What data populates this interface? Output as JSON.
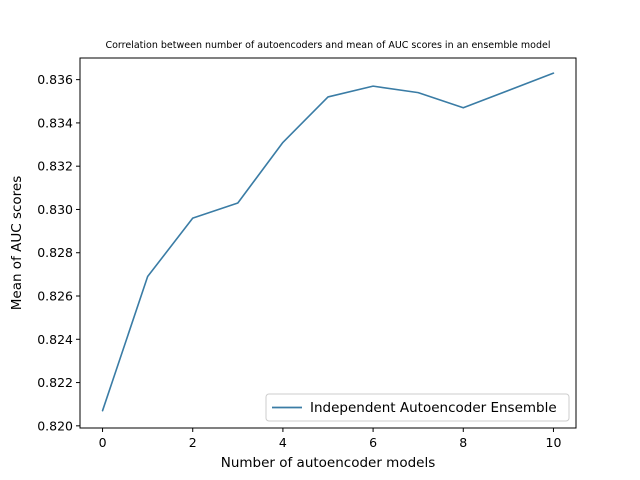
{
  "chart_data": {
    "type": "line",
    "title": "Correlation between number of autoencoders and mean of AUC scores in an ensemble model",
    "xlabel": "Number of autoencoder models",
    "ylabel": "Mean of AUC scores",
    "xlim": [
      -0.5,
      10.5
    ],
    "ylim": [
      0.8199,
      0.837
    ],
    "xticks": [
      0,
      2,
      4,
      6,
      8,
      10
    ],
    "xtick_labels": [
      "0",
      "2",
      "4",
      "6",
      "8",
      "10"
    ],
    "yticks": [
      0.82,
      0.822,
      0.824,
      0.826,
      0.828,
      0.83,
      0.832,
      0.834,
      0.836
    ],
    "ytick_labels": [
      "0.820",
      "0.822",
      "0.824",
      "0.826",
      "0.828",
      "0.830",
      "0.832",
      "0.834",
      "0.836"
    ],
    "grid": false,
    "legend_position": "lower-right",
    "series": [
      {
        "name": "Independent Autoencoder Ensemble",
        "color": "#3a7ca5",
        "x": [
          0,
          1,
          2,
          3,
          4,
          5,
          6,
          7,
          8,
          10
        ],
        "y": [
          0.8207,
          0.8269,
          0.8296,
          0.8303,
          0.8331,
          0.8352,
          0.8357,
          0.8354,
          0.8347,
          0.8363
        ]
      }
    ]
  }
}
